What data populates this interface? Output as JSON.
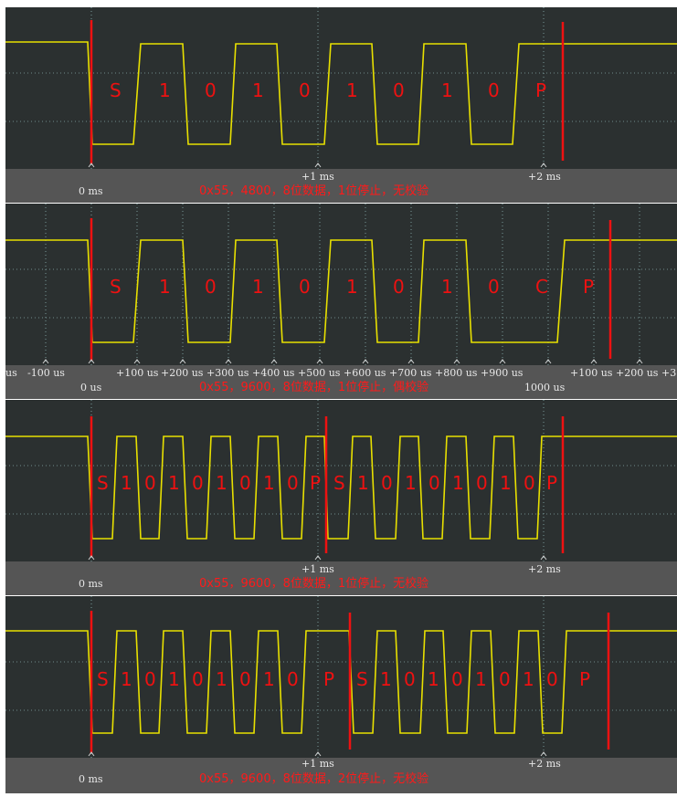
{
  "panels": [
    {
      "id": "p1",
      "caption": "0x55，4800，8位数据，1位停止，无校验",
      "labels": [
        "S",
        "1",
        "0",
        "1",
        "0",
        "1",
        "0",
        "1",
        "0",
        "P"
      ],
      "tick_labels": [
        "0 ms",
        "+1 ms",
        "+2 ms"
      ],
      "colors": {
        "trace": "#e8e000",
        "marker": "#ee1111",
        "label": "#ee1111"
      }
    },
    {
      "id": "p2",
      "caption": "0x55，9600，8位数据，1位停止，偶校验",
      "labels": [
        "S",
        "1",
        "0",
        "1",
        "0",
        "1",
        "0",
        "1",
        "0",
        "C",
        "P"
      ],
      "tick_labels": [
        "us",
        "-100 us",
        "0 us",
        "+100 us",
        "+200 us",
        "+300 us",
        "+400 us",
        "+500 us",
        "+600 us",
        "+700 us",
        "+800 us",
        "+900 us",
        "1000 us",
        "+100 us",
        "+200 us",
        "+3"
      ],
      "colors": {
        "trace": "#e8e000",
        "marker": "#ee1111",
        "label": "#ee1111"
      }
    },
    {
      "id": "p3",
      "caption": "0x55，9600，8位数据，1位停止，无校验",
      "labels": [
        "S",
        "1",
        "0",
        "1",
        "0",
        "1",
        "0",
        "1",
        "0",
        "P",
        "S",
        "1",
        "0",
        "1",
        "0",
        "1",
        "0",
        "1",
        "0",
        "P"
      ],
      "tick_labels": [
        "0 ms",
        "+1 ms",
        "+2 ms"
      ],
      "colors": {
        "trace": "#e8e000",
        "marker": "#ee1111",
        "label": "#ee1111"
      }
    },
    {
      "id": "p4",
      "caption": "0x55，9600，8位数据，2位停止，无校验",
      "labels": [
        "S",
        "1",
        "0",
        "1",
        "0",
        "1",
        "0",
        "1",
        "0",
        "P",
        "S",
        "1",
        "0",
        "1",
        "0",
        "1",
        "0",
        "1",
        "0",
        "P"
      ],
      "tick_labels": [
        "0 ms",
        "+1 ms",
        "+2 ms"
      ],
      "colors": {
        "trace": "#e8e000",
        "marker": "#ee1111",
        "label": "#ee1111"
      }
    }
  ]
}
